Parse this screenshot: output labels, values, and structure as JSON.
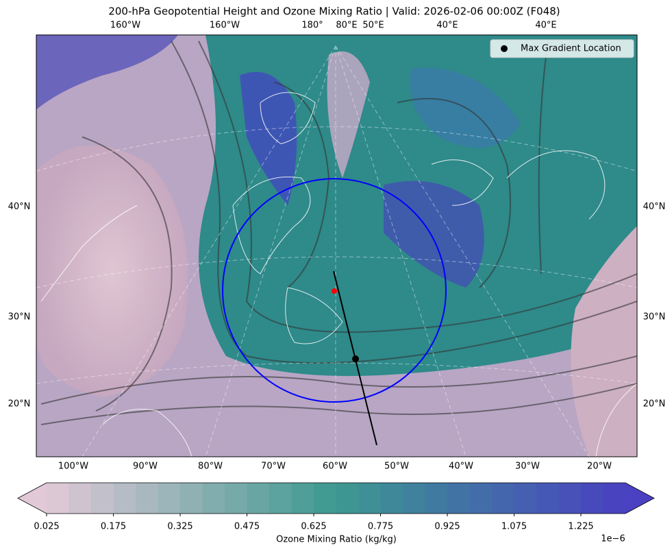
{
  "title": "200-hPa Geopotential Height and Ozone Mixing Ratio   |  Valid: 2026-02-06 00:00Z (F048)",
  "map": {
    "top_labels": [
      "160°W",
      "160°W",
      "180°",
      "80°E",
      "50°E",
      "40°E",
      "40°E"
    ],
    "bottom_labels": [
      "100°W",
      "90°W",
      "80°W",
      "70°W",
      "60°W",
      "50°W",
      "40°W",
      "30°W",
      "20°W"
    ],
    "left_labels": [
      "40°N",
      "30°N",
      "20°N"
    ],
    "right_labels": [
      "40°N",
      "30°N",
      "20°N"
    ]
  },
  "legend": {
    "label": "Max Gradient Location"
  },
  "colorbar": {
    "label": "Ozone Mixing Ratio (kg/kg)",
    "offset_label": "1e−6",
    "lim": [
      0.025,
      1.325
    ],
    "ticks": [
      0.025,
      0.175,
      0.325,
      0.475,
      0.625,
      0.775,
      0.925,
      1.075,
      1.225
    ],
    "colors": [
      "#e2c9d8",
      "#3c9990",
      "#4a40c2"
    ]
  }
}
